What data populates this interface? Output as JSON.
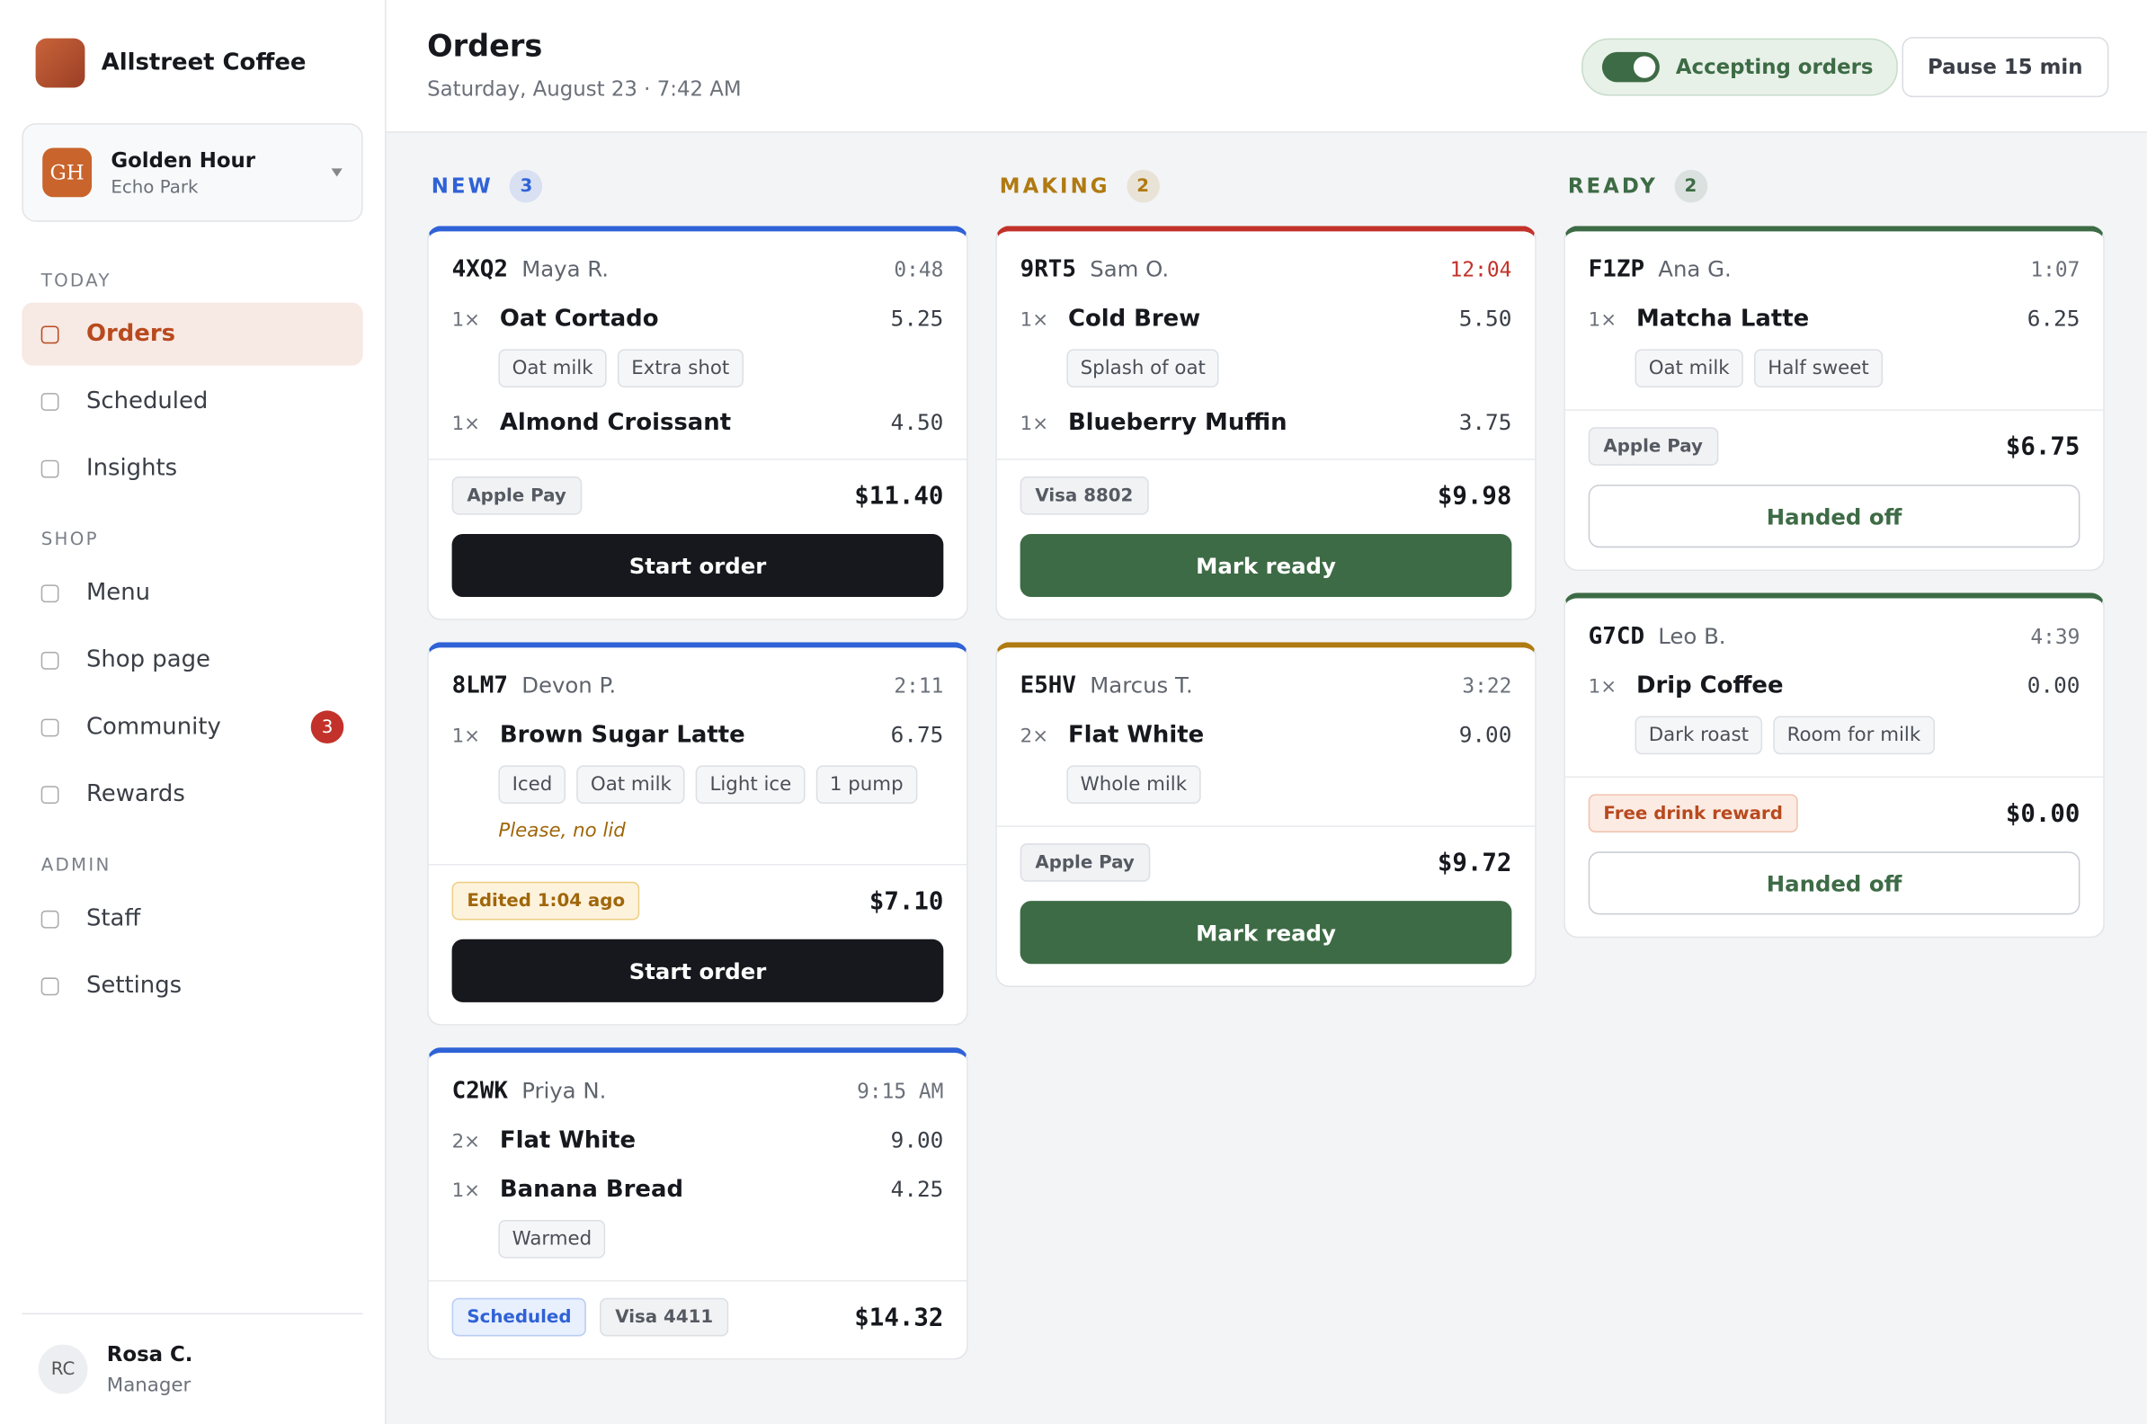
{
  "sidebar": {
    "brand": "Allstreet Coffee",
    "location": {
      "initials": "GH",
      "name": "Golden Hour",
      "area": "Echo Park"
    },
    "sections": [
      {
        "title": "TODAY",
        "items": [
          {
            "label": "Orders",
            "active": true
          },
          {
            "label": "Scheduled"
          },
          {
            "label": "Insights"
          }
        ]
      },
      {
        "title": "SHOP",
        "items": [
          {
            "label": "Menu"
          },
          {
            "label": "Shop page"
          },
          {
            "label": "Community",
            "badge": 3
          },
          {
            "label": "Rewards"
          }
        ]
      },
      {
        "title": "ADMIN",
        "items": [
          {
            "label": "Staff"
          },
          {
            "label": "Settings"
          }
        ]
      }
    ],
    "user": {
      "initials": "RC",
      "name": "Rosa C.",
      "role": "Manager"
    }
  },
  "header": {
    "title": "Orders",
    "subtitle": "Saturday, August 23 · 7:42 AM",
    "toggle": "Accepting orders",
    "pause": "Pause 15 min"
  },
  "columns": [
    {
      "title": "NEW",
      "count": 3,
      "color": "#2f62d6",
      "orders": [
        {
          "code": "4XQ2",
          "customer": "Maya R.",
          "time": "0:48",
          "items": [
            {
              "qty": "1×",
              "name": "Oat Cortado",
              "price": "5.25",
              "mods": [
                "Oat milk",
                "Extra shot"
              ]
            },
            {
              "qty": "1×",
              "name": "Almond Croissant",
              "price": "4.50"
            }
          ],
          "tags": [
            {
              "label": "Apple Pay",
              "kind": "pay"
            }
          ],
          "total": "$11.40",
          "action": {
            "label": "Start order",
            "kind": "start"
          }
        },
        {
          "code": "8LM7",
          "customer": "Devon P.",
          "time": "2:11",
          "items": [
            {
              "qty": "1×",
              "name": "Brown Sugar Latte",
              "price": "6.75",
              "mods": [
                "Iced",
                "Oat milk",
                "Light ice",
                "1 pump"
              ]
            }
          ],
          "note": "Please, no lid",
          "tags": [
            {
              "label": "Edited 1:04 ago",
              "kind": "edited"
            }
          ],
          "total": "$7.10",
          "action": {
            "label": "Start order",
            "kind": "start"
          }
        },
        {
          "code": "C2WK",
          "customer": "Priya N.",
          "time": "9:15 AM",
          "items": [
            {
              "qty": "2×",
              "name": "Flat White",
              "price": "9.00"
            },
            {
              "qty": "1×",
              "name": "Banana Bread",
              "price": "4.25",
              "mods": [
                "Warmed"
              ]
            }
          ],
          "tags": [
            {
              "label": "Scheduled",
              "kind": "scheduled"
            },
            {
              "label": "Visa 4411",
              "kind": "pay"
            }
          ],
          "total": "$14.32"
        }
      ]
    },
    {
      "title": "MAKING",
      "count": 2,
      "color": "#b07a12",
      "orders": [
        {
          "code": "9RT5",
          "customer": "Sam O.",
          "time": "12:04",
          "late": true,
          "items": [
            {
              "qty": "1×",
              "name": "Cold Brew",
              "price": "5.50",
              "mods": [
                "Splash of oat"
              ]
            },
            {
              "qty": "1×",
              "name": "Blueberry Muffin",
              "price": "3.75"
            }
          ],
          "tags": [
            {
              "label": "Visa 8802",
              "kind": "pay"
            }
          ],
          "total": "$9.98",
          "action": {
            "label": "Mark ready",
            "kind": "ready"
          }
        },
        {
          "code": "E5HV",
          "customer": "Marcus T.",
          "time": "3:22",
          "items": [
            {
              "qty": "2×",
              "name": "Flat White",
              "price": "9.00",
              "mods": [
                "Whole milk"
              ]
            }
          ],
          "tags": [
            {
              "label": "Apple Pay",
              "kind": "pay"
            }
          ],
          "total": "$9.72",
          "action": {
            "label": "Mark ready",
            "kind": "ready"
          }
        }
      ]
    },
    {
      "title": "READY",
      "count": 2,
      "color": "#3d6b45",
      "orders": [
        {
          "code": "F1ZP",
          "customer": "Ana G.",
          "time": "1:07",
          "items": [
            {
              "qty": "1×",
              "name": "Matcha Latte",
              "price": "6.25",
              "mods": [
                "Oat milk",
                "Half sweet"
              ]
            }
          ],
          "tags": [
            {
              "label": "Apple Pay",
              "kind": "pay"
            }
          ],
          "total": "$6.75",
          "action": {
            "label": "Handed off",
            "kind": "handed"
          }
        },
        {
          "code": "G7CD",
          "customer": "Leo B.",
          "time": "4:39",
          "items": [
            {
              "qty": "1×",
              "name": "Drip Coffee",
              "price": "0.00",
              "mods": [
                "Dark roast",
                "Room for milk"
              ]
            }
          ],
          "tags": [
            {
              "label": "Free drink reward",
              "kind": "reward"
            }
          ],
          "total": "$0.00",
          "action": {
            "label": "Handed off",
            "kind": "handed"
          }
        }
      ]
    }
  ]
}
